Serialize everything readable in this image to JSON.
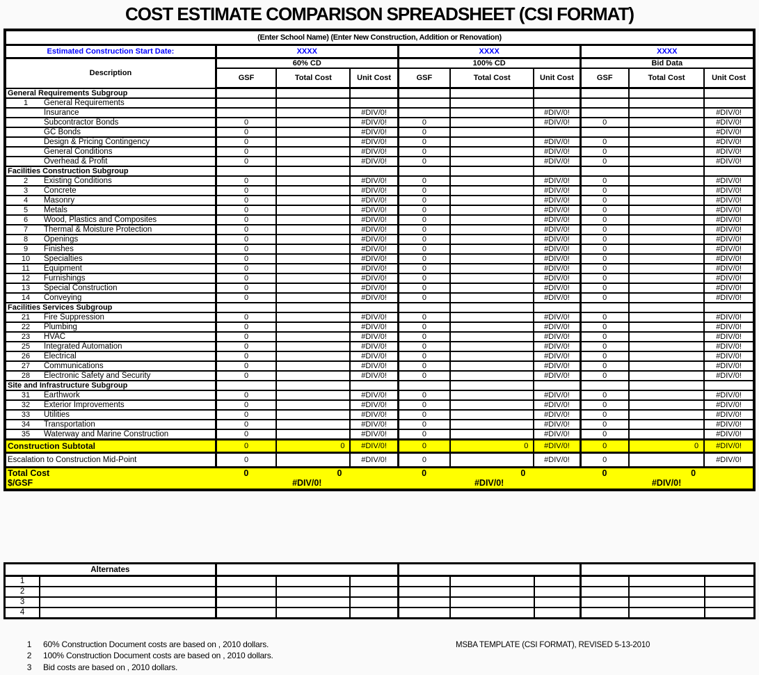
{
  "page": {
    "title": "COST ESTIMATE COMPARISON SPREADSHEET (CSI FORMAT)"
  },
  "header": {
    "school_line": "(Enter School Name) (Enter New Construction, Addition or Renovation)",
    "start_date_label": "Estimated Construction Start Date:",
    "start_date_values": [
      "XXXX",
      "XXXX",
      "XXXX"
    ],
    "description_label": "Description",
    "groups": [
      "60% CD",
      "100% CD",
      "Bid Data"
    ],
    "sub_columns": [
      "GSF",
      "Total Cost",
      "Unit Cost"
    ]
  },
  "rows": [
    {
      "type": "subgroup",
      "label": "General Requirements Subgroup",
      "cells": [
        "",
        "",
        "",
        "",
        "",
        "",
        "",
        "",
        ""
      ]
    },
    {
      "type": "item",
      "num": "1",
      "label": "General Requirements",
      "cells": [
        "",
        "",
        "",
        "",
        "",
        "",
        "",
        "",
        ""
      ]
    },
    {
      "type": "item",
      "num": "",
      "label": "Insurance",
      "cells": [
        "",
        "",
        "#DIV/0!",
        "",
        "",
        "#DIV/0!",
        "",
        "",
        "#DIV/0!"
      ]
    },
    {
      "type": "item",
      "num": "",
      "label": "Subcontractor Bonds",
      "cells": [
        "0",
        "",
        "#DIV/0!",
        "0",
        "",
        "#DIV/0!",
        "0",
        "",
        "#DIV/0!"
      ]
    },
    {
      "type": "item",
      "num": "",
      "label": "GC Bonds",
      "cells": [
        "0",
        "",
        "#DIV/0!",
        "0",
        "",
        "",
        "",
        "",
        "#DIV/0!"
      ]
    },
    {
      "type": "item",
      "num": "",
      "label": "Design & Pricing Contingency",
      "cells": [
        "0",
        "",
        "#DIV/0!",
        "0",
        "",
        "#DIV/0!",
        "0",
        "",
        "#DIV/0!"
      ]
    },
    {
      "type": "item",
      "num": "",
      "label": "General Conditions",
      "cells": [
        "0",
        "",
        "#DIV/0!",
        "0",
        "",
        "#DIV/0!",
        "0",
        "",
        "#DIV/0!"
      ]
    },
    {
      "type": "item",
      "num": "",
      "label": "Overhead & Profit",
      "cells": [
        "0",
        "",
        "#DIV/0!",
        "0",
        "",
        "#DIV/0!",
        "0",
        "",
        "#DIV/0!"
      ]
    },
    {
      "type": "subgroup",
      "label": "Facilities Construction Subgroup",
      "cells": [
        "",
        "",
        "",
        "",
        "",
        "",
        "",
        "",
        ""
      ]
    },
    {
      "type": "item",
      "num": "2",
      "label": "Existing Conditions",
      "cells": [
        "0",
        "",
        "#DIV/0!",
        "0",
        "",
        "#DIV/0!",
        "0",
        "",
        "#DIV/0!"
      ]
    },
    {
      "type": "item",
      "num": "3",
      "label": "Concrete",
      "cells": [
        "0",
        "",
        "#DIV/0!",
        "0",
        "",
        "#DIV/0!",
        "0",
        "",
        "#DIV/0!"
      ]
    },
    {
      "type": "item",
      "num": "4",
      "label": "Masonry",
      "cells": [
        "0",
        "",
        "#DIV/0!",
        "0",
        "",
        "#DIV/0!",
        "0",
        "",
        "#DIV/0!"
      ]
    },
    {
      "type": "item",
      "num": "5",
      "label": "Metals",
      "cells": [
        "0",
        "",
        "#DIV/0!",
        "0",
        "",
        "#DIV/0!",
        "0",
        "",
        "#DIV/0!"
      ]
    },
    {
      "type": "item",
      "num": "6",
      "label": "Wood, Plastics and Composites",
      "cells": [
        "0",
        "",
        "#DIV/0!",
        "0",
        "",
        "#DIV/0!",
        "0",
        "",
        "#DIV/0!"
      ]
    },
    {
      "type": "item",
      "num": "7",
      "label": "Thermal & Moisture Protection",
      "cells": [
        "0",
        "",
        "#DIV/0!",
        "0",
        "",
        "#DIV/0!",
        "0",
        "",
        "#DIV/0!"
      ]
    },
    {
      "type": "item",
      "num": "8",
      "label": "Openings",
      "cells": [
        "0",
        "",
        "#DIV/0!",
        "0",
        "",
        "#DIV/0!",
        "0",
        "",
        "#DIV/0!"
      ]
    },
    {
      "type": "item",
      "num": "9",
      "label": "Finishes",
      "cells": [
        "0",
        "",
        "#DIV/0!",
        "0",
        "",
        "#DIV/0!",
        "0",
        "",
        "#DIV/0!"
      ]
    },
    {
      "type": "item",
      "num": "10",
      "label": "Specialties",
      "cells": [
        "0",
        "",
        "#DIV/0!",
        "0",
        "",
        "#DIV/0!",
        "0",
        "",
        "#DIV/0!"
      ]
    },
    {
      "type": "item",
      "num": "11",
      "label": "Equipment",
      "cells": [
        "0",
        "",
        "#DIV/0!",
        "0",
        "",
        "#DIV/0!",
        "0",
        "",
        "#DIV/0!"
      ]
    },
    {
      "type": "item",
      "num": "12",
      "label": "Furnishings",
      "cells": [
        "0",
        "",
        "#DIV/0!",
        "0",
        "",
        "#DIV/0!",
        "0",
        "",
        "#DIV/0!"
      ]
    },
    {
      "type": "item",
      "num": "13",
      "label": "Special Construction",
      "cells": [
        "0",
        "",
        "#DIV/0!",
        "0",
        "",
        "#DIV/0!",
        "0",
        "",
        "#DIV/0!"
      ]
    },
    {
      "type": "item",
      "num": "14",
      "label": "Conveying",
      "cells": [
        "0",
        "",
        "#DIV/0!",
        "0",
        "",
        "#DIV/0!",
        "0",
        "",
        "#DIV/0!"
      ]
    },
    {
      "type": "subgroup",
      "label": "Facilities Services Subgroup",
      "cells": [
        "",
        "",
        "",
        "",
        "",
        "",
        "",
        "",
        ""
      ]
    },
    {
      "type": "item",
      "num": "21",
      "label": "Fire Suppression",
      "cells": [
        "0",
        "",
        "#DIV/0!",
        "0",
        "",
        "#DIV/0!",
        "0",
        "",
        "#DIV/0!"
      ]
    },
    {
      "type": "item",
      "num": "22",
      "label": "Plumbing",
      "cells": [
        "0",
        "",
        "#DIV/0!",
        "0",
        "",
        "#DIV/0!",
        "0",
        "",
        "#DIV/0!"
      ]
    },
    {
      "type": "item",
      "num": "23",
      "label": "HVAC",
      "cells": [
        "0",
        "",
        "#DIV/0!",
        "0",
        "",
        "#DIV/0!",
        "0",
        "",
        "#DIV/0!"
      ]
    },
    {
      "type": "item",
      "num": "25",
      "label": "Integrated Automation",
      "cells": [
        "0",
        "",
        "#DIV/0!",
        "0",
        "",
        "#DIV/0!",
        "0",
        "",
        "#DIV/0!"
      ]
    },
    {
      "type": "item",
      "num": "26",
      "label": "Electrical",
      "cells": [
        "0",
        "",
        "#DIV/0!",
        "0",
        "",
        "#DIV/0!",
        "0",
        "",
        "#DIV/0!"
      ]
    },
    {
      "type": "item",
      "num": "27",
      "label": "Communications",
      "cells": [
        "0",
        "",
        "#DIV/0!",
        "0",
        "",
        "#DIV/0!",
        "0",
        "",
        "#DIV/0!"
      ]
    },
    {
      "type": "item",
      "num": "28",
      "label": "Electronic Safety and Security",
      "cells": [
        "0",
        "",
        "#DIV/0!",
        "0",
        "",
        "#DIV/0!",
        "0",
        "",
        "#DIV/0!"
      ]
    },
    {
      "type": "subgroup",
      "label": "Site and Infrastructure Subgroup",
      "cells": [
        "",
        "",
        "",
        "",
        "",
        "",
        "",
        "",
        ""
      ]
    },
    {
      "type": "item",
      "num": "31",
      "label": "Earthwork",
      "cells": [
        "0",
        "",
        "#DIV/0!",
        "0",
        "",
        "#DIV/0!",
        "0",
        "",
        "#DIV/0!"
      ]
    },
    {
      "type": "item",
      "num": "32",
      "label": "Exterior Improvements",
      "cells": [
        "0",
        "",
        "#DIV/0!",
        "0",
        "",
        "#DIV/0!",
        "0",
        "",
        "#DIV/0!"
      ]
    },
    {
      "type": "item",
      "num": "33",
      "label": "Utilities",
      "cells": [
        "0",
        "",
        "#DIV/0!",
        "0",
        "",
        "#DIV/0!",
        "0",
        "",
        "#DIV/0!"
      ]
    },
    {
      "type": "item",
      "num": "34",
      "label": "Transportation",
      "cells": [
        "0",
        "",
        "#DIV/0!",
        "0",
        "",
        "#DIV/0!",
        "0",
        "",
        "#DIV/0!"
      ]
    },
    {
      "type": "item",
      "num": "35",
      "label": "Waterway and Marine Construction",
      "cells": [
        "0",
        "",
        "#DIV/0!",
        "0",
        "",
        "#DIV/0!",
        "0",
        "",
        "#DIV/0!"
      ]
    }
  ],
  "summary": {
    "subtotal": {
      "label": "Construction Subtotal",
      "cells": [
        "0",
        "0",
        "#DIV/0!",
        "0",
        "0",
        "#DIV/0!",
        "0",
        "0",
        "#DIV/0!"
      ]
    },
    "escalation": {
      "label": "Escalation to Construction Mid-Point",
      "cells": [
        "0",
        "",
        "#DIV/0!",
        "0",
        "",
        "#DIV/0!",
        "0",
        "",
        "#DIV/0!"
      ]
    },
    "total_cost": {
      "label": "Total Cost",
      "gsf": [
        "0",
        "0",
        "0"
      ],
      "total": [
        "0",
        "0",
        "0"
      ]
    },
    "per_gsf": {
      "label": "$/GSF",
      "values": [
        "#DIV/0!",
        "#DIV/0!",
        "#DIV/0!"
      ]
    }
  },
  "alternates": {
    "header": "Alternates",
    "row_numbers": [
      "1",
      "2",
      "3",
      "4"
    ]
  },
  "footnotes": [
    {
      "num": "1",
      "text": "60% Construction Document costs are based on  , 2010 dollars."
    },
    {
      "num": "2",
      "text": "100% Construction Document costs are based on  , 2010 dollars."
    },
    {
      "num": "3",
      "text": "Bid costs are based on  , 2010 dollars."
    }
  ],
  "template_note": "MSBA TEMPLATE (CSI FORMAT), REVISED  5-13-2010",
  "colors": {
    "highlight_yellow": "#ffff00",
    "accent_blue": "#0000ff",
    "border_black": "#000000"
  }
}
